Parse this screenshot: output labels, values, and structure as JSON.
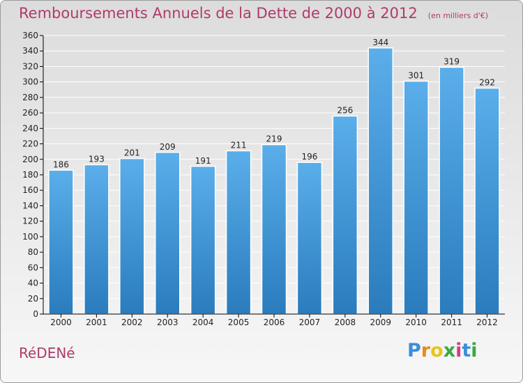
{
  "chart_data": {
    "type": "bar",
    "title": "Remboursements Annuels de la Dette de 2000 à 2012",
    "subtitle": "(en milliers d'€)",
    "categories": [
      "2000",
      "2001",
      "2002",
      "2003",
      "2004",
      "2005",
      "2006",
      "2007",
      "2008",
      "2009",
      "2010",
      "2011",
      "2012"
    ],
    "values": [
      186,
      193,
      201,
      209,
      191,
      211,
      219,
      196,
      256,
      344,
      301,
      319,
      292
    ],
    "ylim": [
      0,
      360
    ],
    "yticks": [
      0,
      20,
      40,
      60,
      80,
      100,
      120,
      140,
      160,
      180,
      200,
      220,
      240,
      260,
      280,
      300,
      320,
      340,
      360
    ],
    "grid": true,
    "bar_color_top": "#5aaeea",
    "bar_color_bottom": "#2a7cbd"
  },
  "commune_name": "RéDENé",
  "logo": {
    "text": "Proxiti",
    "letters": [
      "P",
      "r",
      "o",
      "x",
      "i",
      "t",
      "i"
    ],
    "colors": [
      "#3a8fd9",
      "#e88a1a",
      "#e8c41a",
      "#39a843",
      "#d63a8b",
      "#3a8fd9",
      "#39a843"
    ]
  },
  "colors": {
    "title": "#b03a6a",
    "grid": "#ffffff",
    "axis": "#000000"
  }
}
